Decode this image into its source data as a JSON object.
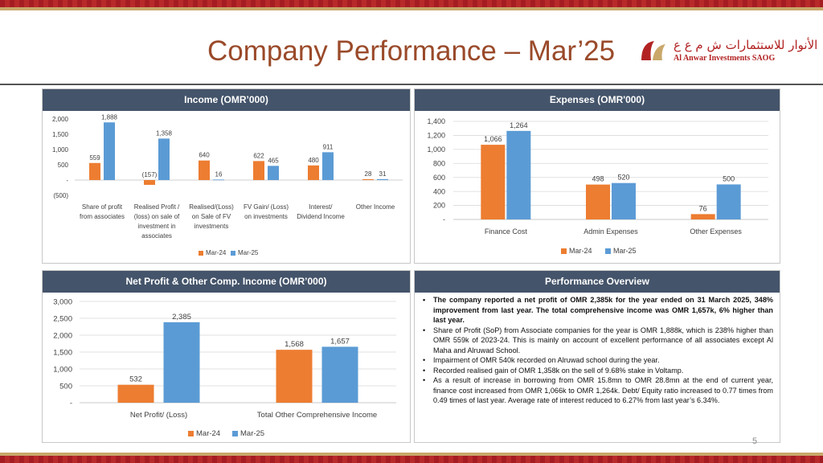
{
  "page": {
    "title": "Company Performance – Mar’25",
    "page_number": "5"
  },
  "logo": {
    "arabic": "الأنوار للاستثمارات ش م ع ع",
    "english": "Al Anwar Investments SAOG"
  },
  "colors": {
    "mar24": "#ed7d31",
    "mar25": "#5b9bd5",
    "header_bg": "#44546a"
  },
  "chart_data": [
    {
      "id": "income",
      "type": "bar",
      "title": "Income (OMR’000)",
      "categories": [
        [
          "Share of profit",
          "from associates"
        ],
        [
          "Realised Profit /",
          "(loss) on sale of",
          "investment in",
          "associates"
        ],
        [
          "Realised/(Loss)",
          "on Sale of FV",
          "investments"
        ],
        [
          "FV Gain/ (Loss)",
          "on investments"
        ],
        [
          "Interest/",
          "Dividend Income"
        ],
        [
          "Other Income"
        ]
      ],
      "series": [
        {
          "name": "Mar-24",
          "values": [
            559,
            -157,
            640,
            622,
            480,
            28
          ]
        },
        {
          "name": "Mar-25",
          "values": [
            1888,
            1358,
            16,
            465,
            911,
            31
          ]
        }
      ],
      "data_labels": [
        [
          "559",
          "(157)",
          "640",
          "622",
          "480",
          "28"
        ],
        [
          "1,888",
          "1,358",
          "16",
          "465",
          "911",
          "31"
        ]
      ],
      "yticks": [
        2000,
        1500,
        1000,
        500,
        0,
        -500
      ],
      "ytick_labels": [
        "2,000",
        "1,500",
        "1,000",
        "500",
        "-",
        "(500)"
      ],
      "ylim": [
        -500,
        2000
      ],
      "grid": false,
      "legend": "bottom"
    },
    {
      "id": "expenses",
      "type": "bar",
      "title": "Expenses (OMR'000)",
      "categories": [
        [
          "Finance Cost"
        ],
        [
          "Admin Expenses"
        ],
        [
          "Other Expenses"
        ]
      ],
      "series": [
        {
          "name": "Mar-24",
          "values": [
            1066,
            498,
            76
          ]
        },
        {
          "name": "Mar-25",
          "values": [
            1264,
            520,
            500
          ]
        }
      ],
      "data_labels": [
        [
          "1,066",
          "498",
          "76"
        ],
        [
          "1,264",
          "520",
          "500"
        ]
      ],
      "yticks": [
        1400,
        1200,
        1000,
        800,
        600,
        400,
        200,
        0
      ],
      "ytick_labels": [
        "1,400",
        "1,200",
        "1,000",
        "800",
        "600",
        "400",
        "200",
        "-"
      ],
      "ylim": [
        0,
        1400
      ],
      "grid": true,
      "legend": "bottom"
    },
    {
      "id": "netprofit",
      "type": "bar",
      "title": "Net Profit & Other Comp. Income (OMR’000)",
      "categories": [
        [
          "Net Profit/ (Loss)"
        ],
        [
          "Total Other Comprehensive Income"
        ]
      ],
      "series": [
        {
          "name": "Mar-24",
          "values": [
            532,
            1568
          ]
        },
        {
          "name": "Mar-25",
          "values": [
            2385,
            1657
          ]
        }
      ],
      "data_labels": [
        [
          "532",
          "1,568"
        ],
        [
          "2,385",
          "1,657"
        ]
      ],
      "yticks": [
        3000,
        2500,
        2000,
        1500,
        1000,
        500,
        0
      ],
      "ytick_labels": [
        "3,000",
        "2,500",
        "2,000",
        "1,500",
        "1,000",
        "500",
        "-"
      ],
      "ylim": [
        0,
        3000
      ],
      "grid": true,
      "legend": "bottom"
    }
  ],
  "overview": {
    "title": "Performance Overview",
    "bullets": [
      {
        "text": "The company reported a net profit of OMR 2,385k for the year ended on 31 March 2025, 348% improvement from last year. The total comprehensive income was OMR 1,657k, 6% higher than last year.",
        "bold": true
      },
      {
        "text": "Share of Profit (SoP) from Associate companies for the year is OMR 1,888k, which is 238% higher than OMR 559k of 2023-24. This is mainly on account of excellent performance of all associates except Al Maha and Alruwad School.",
        "bold": false
      },
      {
        "text": "Impairment of OMR 540k recorded on Alruwad school during the year.",
        "bold": false
      },
      {
        "text": "Recorded realised gain of OMR 1,358k on the sell of 9.68% stake in Voltamp.",
        "bold": false
      },
      {
        "text": "As a result of increase in borrowing from OMR 15.8mn to OMR 28.8mn at the end of current year, finance cost increased from OMR 1,066k to OMR 1,264k. Debt/ Equity ratio increased to 0.77 times from 0.49 times of last year. Average rate of interest reduced to 6.27% from last year’s 6.34%.",
        "bold": false
      }
    ]
  }
}
